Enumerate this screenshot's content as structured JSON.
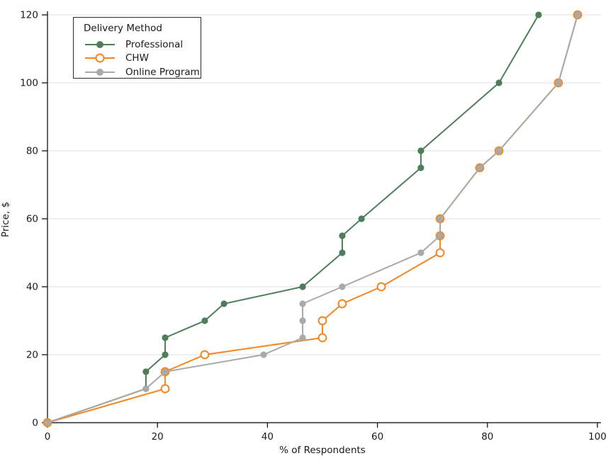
{
  "chart_data": {
    "type": "line",
    "title": "",
    "xlabel": "% of Respondents",
    "ylabel": "Price, $",
    "xlim": [
      0,
      100
    ],
    "ylim": [
      0,
      120
    ],
    "x_ticks": [
      0,
      20,
      40,
      60,
      80,
      100
    ],
    "y_ticks": [
      0,
      20,
      40,
      60,
      80,
      100,
      120
    ],
    "grid": "horizontal-only",
    "colors": {
      "professional": "#4e7d5a",
      "chw": "#f6861f",
      "online_program": "#a9a9a9",
      "gridline": "#dddddd",
      "axis": "#000000",
      "text": "#1a1a1a",
      "background": "#ffffff"
    },
    "legend": {
      "title": "Delivery Method",
      "position": "top-left"
    },
    "series": [
      {
        "name": "Professional",
        "color": "#4e7d5a",
        "marker": "filled-circle",
        "points": [
          [
            0,
            0
          ],
          [
            17.9,
            10
          ],
          [
            17.9,
            15
          ],
          [
            21.4,
            20
          ],
          [
            21.4,
            25
          ],
          [
            28.6,
            30
          ],
          [
            32.1,
            35
          ],
          [
            46.4,
            40
          ],
          [
            53.6,
            50
          ],
          [
            53.6,
            55
          ],
          [
            57.1,
            60
          ],
          [
            67.9,
            75
          ],
          [
            67.9,
            80
          ],
          [
            82.1,
            100
          ],
          [
            89.3,
            120
          ]
        ]
      },
      {
        "name": "CHW",
        "color": "#f6861f",
        "marker": "open-circle",
        "points": [
          [
            0,
            0
          ],
          [
            21.4,
            10
          ],
          [
            21.4,
            15
          ],
          [
            28.6,
            20
          ],
          [
            50,
            25
          ],
          [
            50,
            30
          ],
          [
            53.6,
            35
          ],
          [
            60.7,
            40
          ],
          [
            71.4,
            50
          ],
          [
            71.4,
            55
          ],
          [
            71.4,
            60
          ],
          [
            78.6,
            75
          ],
          [
            82.1,
            80
          ],
          [
            92.9,
            100
          ],
          [
            96.4,
            120
          ]
        ]
      },
      {
        "name": "Online Program",
        "color": "#a9a9a9",
        "marker": "filled-circle",
        "points": [
          [
            0,
            0
          ],
          [
            17.9,
            10
          ],
          [
            21.4,
            15
          ],
          [
            39.3,
            20
          ],
          [
            46.4,
            25
          ],
          [
            46.4,
            30
          ],
          [
            46.4,
            35
          ],
          [
            53.6,
            40
          ],
          [
            67.9,
            50
          ],
          [
            71.4,
            55
          ],
          [
            71.4,
            60
          ],
          [
            78.6,
            75
          ],
          [
            82.1,
            80
          ],
          [
            92.9,
            100
          ],
          [
            96.4,
            120
          ]
        ]
      }
    ]
  }
}
